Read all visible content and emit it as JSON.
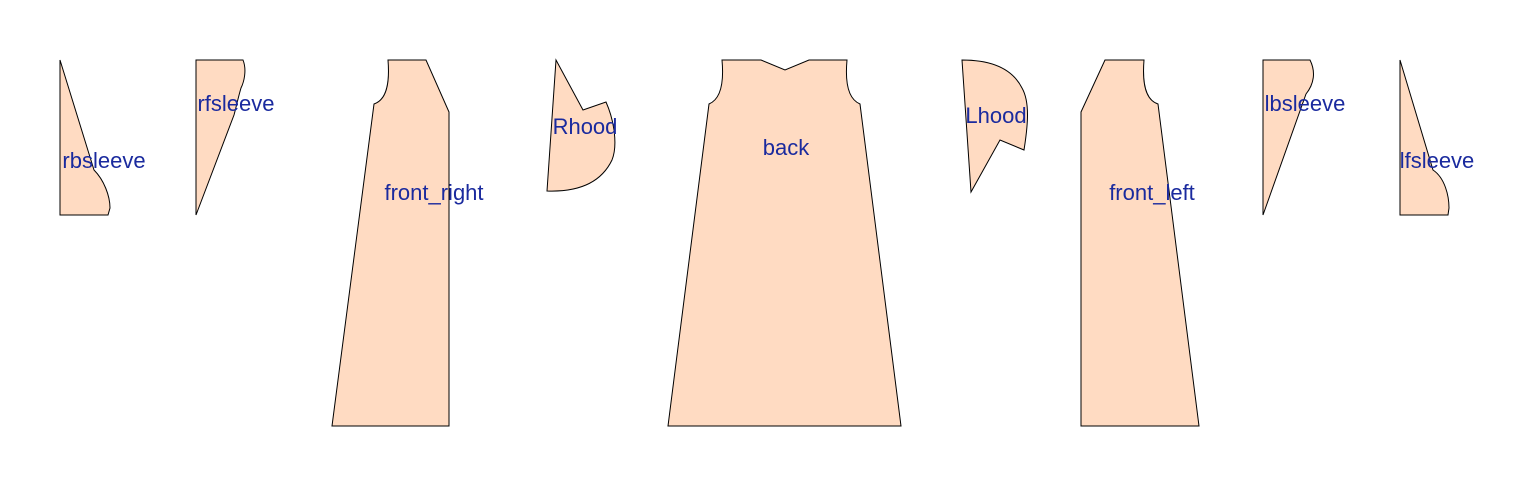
{
  "colors": {
    "piece_fill": "#ffdbc2",
    "piece_stroke": "#000000",
    "label": "#1a2a9e",
    "background": "#ffffff"
  },
  "pieces": [
    {
      "id": "rbsleeve",
      "label": "rbsleeve"
    },
    {
      "id": "rfsleeve",
      "label": "rfsleeve"
    },
    {
      "id": "front_right",
      "label": "front_right"
    },
    {
      "id": "Rhood",
      "label": "Rhood"
    },
    {
      "id": "back",
      "label": "back"
    },
    {
      "id": "Lhood",
      "label": "Lhood"
    },
    {
      "id": "front_left",
      "label": "front_left"
    },
    {
      "id": "lbsleeve",
      "label": "lbsleeve"
    },
    {
      "id": "lfsleeve",
      "label": "lfsleeve"
    }
  ]
}
